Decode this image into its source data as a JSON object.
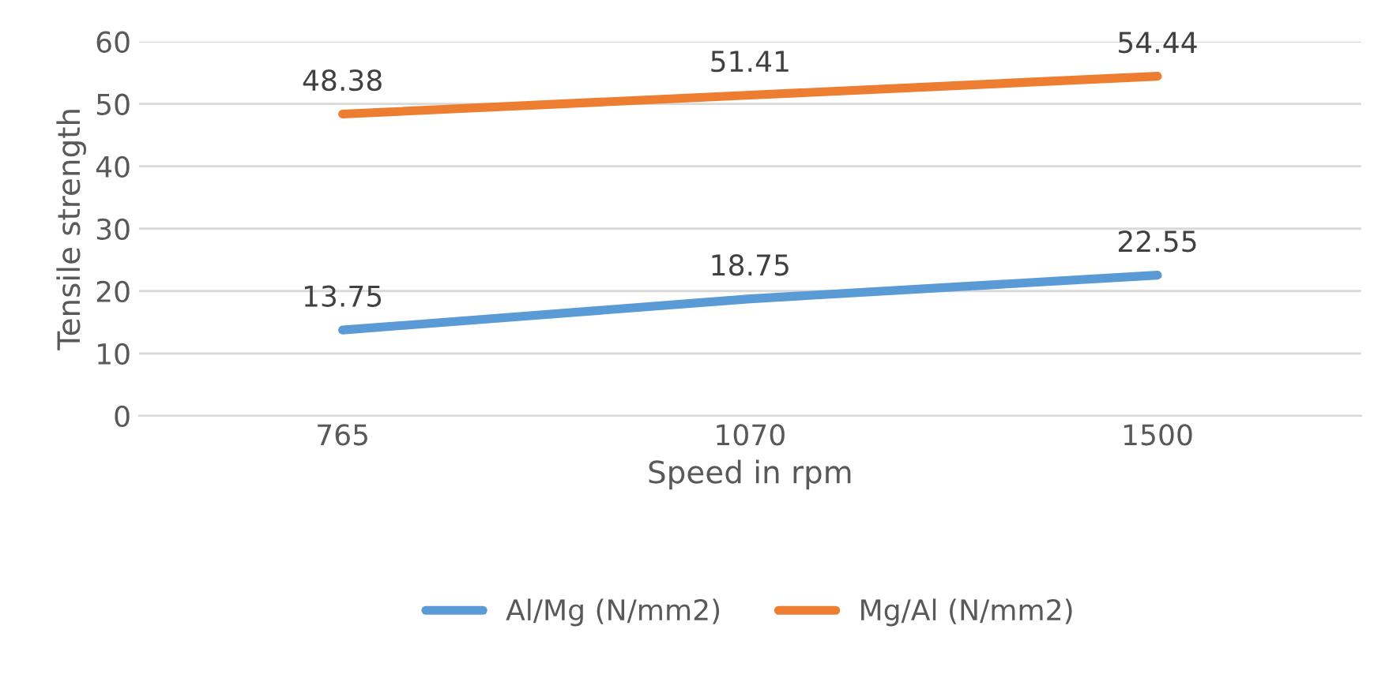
{
  "chart_data": {
    "type": "line",
    "xlabel": "Speed in rpm",
    "ylabel": "Tensile strength",
    "categories": [
      "765",
      "1070",
      "1500"
    ],
    "series": [
      {
        "name": "Al/Mg (N/mm2)",
        "color": "#5b9bd5",
        "values": [
          13.75,
          18.75,
          22.55
        ]
      },
      {
        "name": "Mg/Al (N/mm2)",
        "color": "#ed7d31",
        "values": [
          48.38,
          51.41,
          54.44
        ]
      }
    ],
    "ylim": [
      0,
      60
    ],
    "yticks": [
      0,
      10,
      20,
      30,
      40,
      50,
      60
    ],
    "grid": "y",
    "legend": "bottom",
    "data_labels": true,
    "marker": "none",
    "line_style": "solid"
  }
}
